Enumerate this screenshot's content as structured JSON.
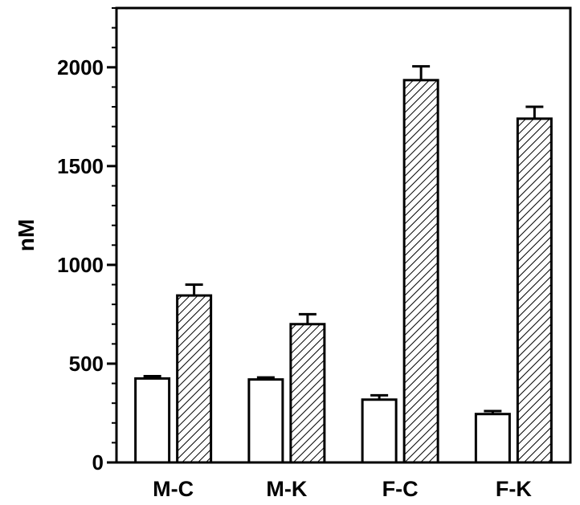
{
  "chart_data": {
    "type": "bar",
    "ylabel": "nM",
    "xlabel": "",
    "ylim": [
      0,
      2300
    ],
    "y_major_ticks": [
      0,
      500,
      1000,
      1500,
      2000
    ],
    "y_minor_step": 100,
    "grid": false,
    "legend": "none",
    "categories": [
      "M-C",
      "M-K",
      "F-C",
      "F-K"
    ],
    "series": [
      {
        "style": "open",
        "fill": "#ffffff",
        "values": [
          425,
          420,
          318,
          245
        ],
        "errors": [
          12,
          10,
          22,
          15
        ]
      },
      {
        "style": "hatched",
        "fill": "#ffffff",
        "values": [
          845,
          700,
          1935,
          1740
        ],
        "errors": [
          55,
          50,
          70,
          60
        ]
      }
    ]
  }
}
